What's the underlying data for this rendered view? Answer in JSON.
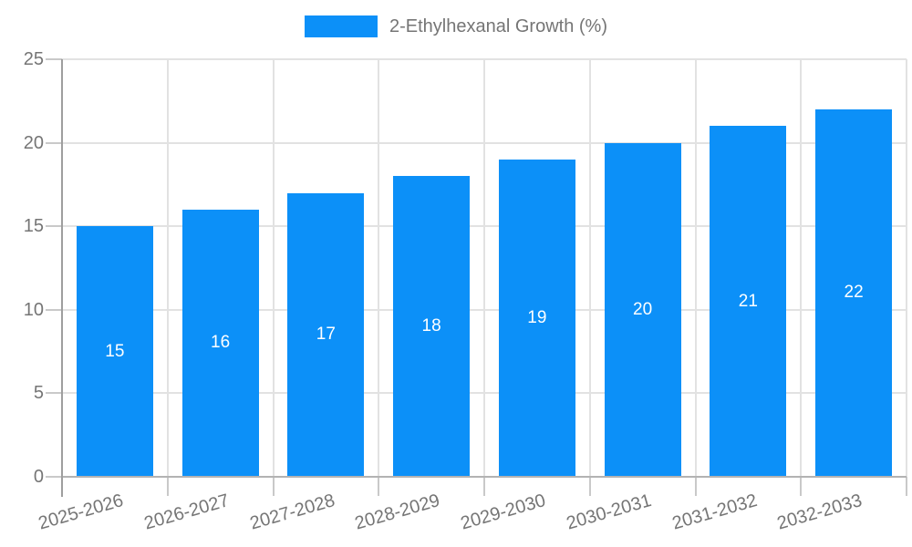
{
  "legend": {
    "label": "2-Ethylhexanal Growth (%)"
  },
  "colors": {
    "bar": "#0C90F8",
    "annotation_text": "#FFFFFF",
    "axis_text": "#757575",
    "legend_text": "#757575",
    "gridline": "#E2E2E2",
    "tick": "#C9C9C9",
    "axis_y_line": "#9E9E9E",
    "axis_x_line": "#B3B3B3",
    "background": "#FFFFFF"
  },
  "chart_data": {
    "type": "bar",
    "title": "",
    "legend": "2-Ethylhexanal Growth (%)",
    "legend_position": "top-center",
    "categories": [
      "2025-2026",
      "2026-2027",
      "2027-2028",
      "2028-2029",
      "2029-2030",
      "2030-2031",
      "2031-2032",
      "2032-2033"
    ],
    "values": [
      15,
      16,
      17,
      18,
      19,
      20,
      21,
      22
    ],
    "xlabel": "",
    "ylabel": "",
    "ylim": [
      0,
      25
    ],
    "y_ticks": [
      0,
      5,
      10,
      15,
      20,
      25
    ],
    "grid": true,
    "bar_value_labels": "white numbers centered inside each bar",
    "x_tick_rotation_deg": -16
  }
}
